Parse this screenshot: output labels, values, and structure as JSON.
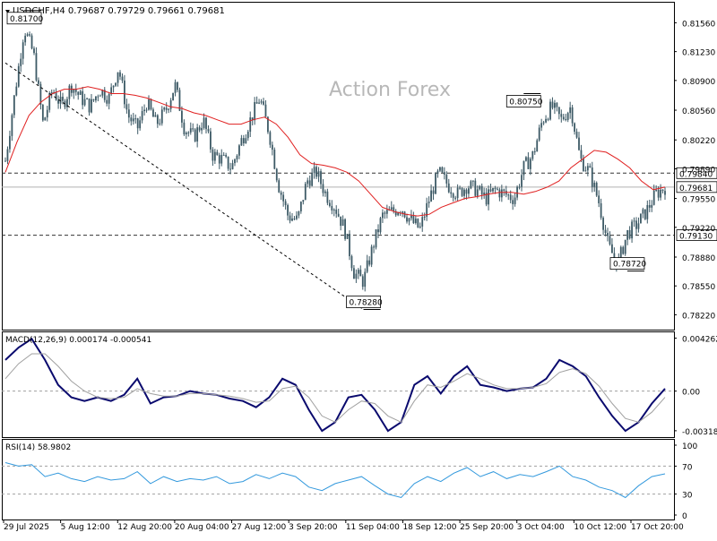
{
  "header": {
    "title": "USDCHF,H4",
    "ohlc": "0.79687 0.79729 0.79661 0.79681"
  },
  "watermark": "Action Forex",
  "colors": {
    "candle": "#3d5a66",
    "ma": "#e02020",
    "macd": "#0a0a6e",
    "signal": "#a0a0a0",
    "rsi": "#3399dd",
    "level": "#333333",
    "trendline": "#000000"
  },
  "chart_data": [
    {
      "type": "candlestick",
      "symbol": "USDCHF",
      "timeframe": "H4",
      "ylim": [
        0.7805,
        0.818
      ],
      "yticks": [
        "0.81560",
        "0.81230",
        "0.80900",
        "0.80560",
        "0.80220",
        "0.79890",
        "0.79550",
        "0.79220",
        "0.78880",
        "0.78550",
        "0.78220"
      ],
      "xticks": [
        "29 Jul 2025",
        "5 Aug 12:00",
        "12 Aug 20:00",
        "20 Aug 04:00",
        "27 Aug 12:00",
        "3 Sep 20:00",
        "11 Sep 04:00",
        "18 Sep 12:00",
        "25 Sep 20:00",
        "3 Oct 04:00",
        "10 Oct 12:00",
        "17 Oct 20:00"
      ],
      "close_path": [
        0.7998,
        0.8075,
        0.815,
        0.812,
        0.804,
        0.808,
        0.806,
        0.8085,
        0.807,
        0.806,
        0.808,
        0.807,
        0.8105,
        0.805,
        0.8035,
        0.8065,
        0.804,
        0.8055,
        0.8085,
        0.8035,
        0.8025,
        0.8045,
        0.8005,
        0.8,
        0.799,
        0.802,
        0.8045,
        0.807,
        0.803,
        0.797,
        0.7935,
        0.793,
        0.7975,
        0.7985,
        0.796,
        0.7945,
        0.792,
        0.787,
        0.786,
        0.79,
        0.7935,
        0.794,
        0.7945,
        0.793,
        0.792,
        0.7955,
        0.7985,
        0.797,
        0.796,
        0.797,
        0.7965,
        0.7955,
        0.7965,
        0.796,
        0.7955,
        0.799,
        0.8005,
        0.8045,
        0.806,
        0.8045,
        0.806,
        0.8,
        0.7985,
        0.795,
        0.79,
        0.788,
        0.7915,
        0.7925,
        0.794,
        0.796,
        0.7968
      ],
      "ma_path": [
        0.7985,
        0.802,
        0.805,
        0.8065,
        0.8075,
        0.808,
        0.808,
        0.8083,
        0.808,
        0.8075,
        0.8075,
        0.8073,
        0.807,
        0.8065,
        0.806,
        0.8058,
        0.8053,
        0.805,
        0.8045,
        0.804,
        0.804,
        0.8045,
        0.8048,
        0.804,
        0.8025,
        0.8005,
        0.7995,
        0.7993,
        0.799,
        0.7985,
        0.7975,
        0.796,
        0.7945,
        0.794,
        0.7937,
        0.7935,
        0.7937,
        0.7945,
        0.795,
        0.7955,
        0.7957,
        0.796,
        0.7962,
        0.7962,
        0.796,
        0.7963,
        0.7968,
        0.7975,
        0.799,
        0.8,
        0.801,
        0.8008,
        0.8,
        0.799,
        0.7975,
        0.7965,
        0.7968
      ],
      "current_price": "0.79681",
      "levels": [
        {
          "label": "0.79840",
          "value": 0.7984
        },
        {
          "label": "0.79130",
          "value": 0.7913
        }
      ],
      "annotations": [
        {
          "label": "0.81700",
          "value": 0.817,
          "index": 2
        },
        {
          "label": "0.78280",
          "value": 0.7828,
          "index": 38
        },
        {
          "label": "0.80750",
          "value": 0.8075,
          "index": 55
        },
        {
          "label": "0.78720",
          "value": 0.7872,
          "index": 66
        }
      ],
      "trendline": {
        "from": {
          "index": 0,
          "value": 0.811
        },
        "to": {
          "index": 38,
          "value": 0.7828
        }
      }
    },
    {
      "type": "line",
      "indicator": "MACD(12,26,9)",
      "header": "MACD(12,26,9) 0.000174 -0.000541",
      "ylim": [
        -0.0037,
        0.0048
      ],
      "yticks": [
        "0.004262",
        "0.00",
        "-0.003188"
      ],
      "series": [
        {
          "name": "MACD",
          "values": [
            0.0025,
            0.0035,
            0.0042,
            0.0025,
            0.0005,
            -0.0005,
            -0.0008,
            -0.0005,
            -0.0008,
            -0.0003,
            0.001,
            -0.001,
            -0.0005,
            -0.0004,
            0.0,
            -0.0002,
            -0.0003,
            -0.0006,
            -0.0008,
            -0.0013,
            -0.0005,
            0.001,
            0.0005,
            -0.0015,
            -0.0032,
            -0.0025,
            -0.0005,
            -0.0003,
            -0.0015,
            -0.0032,
            -0.0025,
            0.0005,
            0.0012,
            -0.0002,
            0.0012,
            0.002,
            0.0005,
            0.0003,
            0.0,
            0.0002,
            0.0003,
            0.001,
            0.0025,
            0.002,
            0.0012,
            -0.0005,
            -0.002,
            -0.0032,
            -0.0025,
            -0.001,
            0.0002
          ]
        },
        {
          "name": "Signal",
          "values": [
            0.001,
            0.0022,
            0.003,
            0.003,
            0.002,
            0.0008,
            0.0,
            -0.0005,
            -0.0006,
            -0.0005,
            0.0002,
            -0.0002,
            -0.0004,
            -0.0004,
            -0.0002,
            -0.0002,
            -0.0003,
            -0.0004,
            -0.0006,
            -0.0009,
            -0.0008,
            0.0002,
            0.0004,
            -0.0005,
            -0.002,
            -0.0025,
            -0.0015,
            -0.0008,
            -0.001,
            -0.002,
            -0.0025,
            -0.0008,
            0.0005,
            0.0003,
            0.0008,
            0.0014,
            0.001,
            0.0005,
            0.0002,
            0.0002,
            0.0003,
            0.0006,
            0.0015,
            0.0018,
            0.0014,
            0.0004,
            -0.001,
            -0.0022,
            -0.0025,
            -0.0017,
            -0.0005
          ]
        }
      ]
    },
    {
      "type": "line",
      "indicator": "RSI(14)",
      "header": "RSI(14) 58.9802",
      "ylim": [
        0,
        100
      ],
      "yticks": [
        "100",
        "70",
        "30",
        "0"
      ],
      "levels": [
        70,
        30
      ],
      "series": [
        {
          "name": "RSI",
          "values": [
            75,
            70,
            72,
            55,
            60,
            52,
            48,
            55,
            50,
            52,
            62,
            45,
            55,
            48,
            52,
            50,
            55,
            45,
            48,
            58,
            52,
            60,
            55,
            40,
            35,
            45,
            50,
            55,
            42,
            30,
            25,
            45,
            55,
            48,
            60,
            68,
            55,
            62,
            52,
            58,
            55,
            62,
            70,
            55,
            50,
            40,
            35,
            25,
            42,
            55,
            59
          ]
        }
      ]
    }
  ]
}
